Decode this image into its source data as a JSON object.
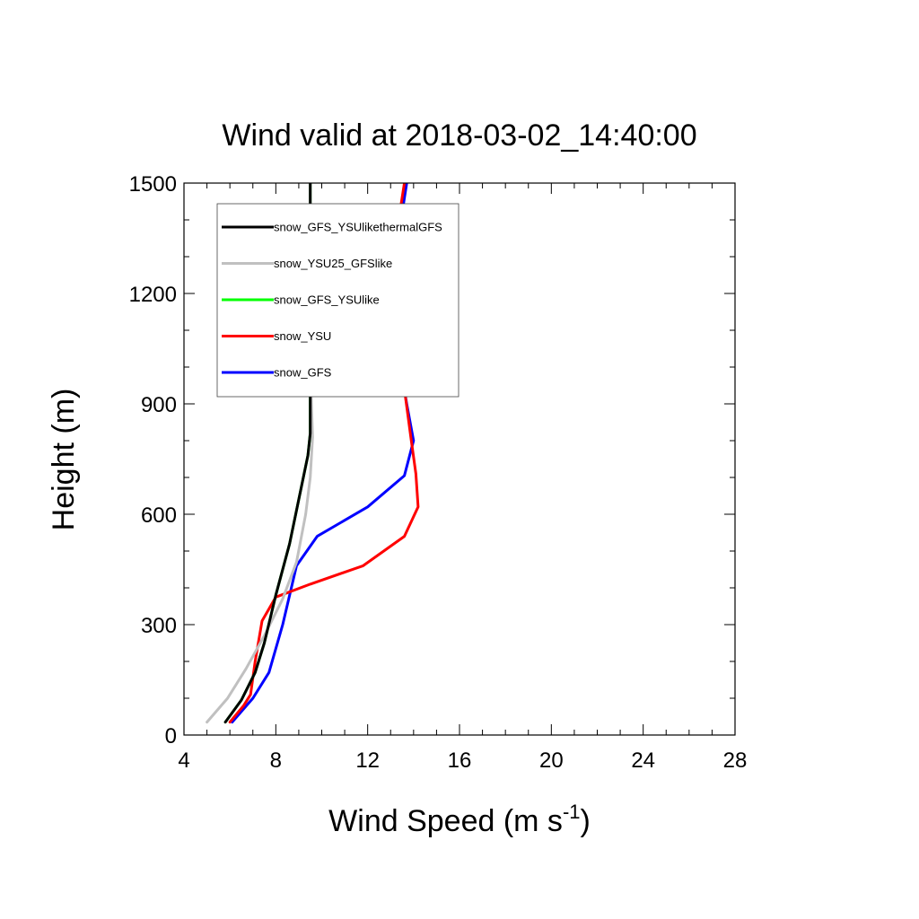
{
  "chart_data": {
    "type": "line",
    "title": "Wind valid at 2018-03-02_14:40:00",
    "xlabel_main": "Wind Speed (m s",
    "xlabel_sup": "-1",
    "xlabel_close": ")",
    "ylabel": "Height (m)",
    "xlim": [
      4,
      28
    ],
    "ylim": [
      0,
      1500
    ],
    "xticks": [
      4,
      8,
      12,
      16,
      20,
      24,
      28
    ],
    "yticks": [
      0,
      300,
      600,
      900,
      1200,
      1500
    ],
    "xtick_labels": [
      "4",
      "8",
      "12",
      "16",
      "20",
      "24",
      "28"
    ],
    "ytick_labels": [
      "0",
      "300",
      "600",
      "900",
      "1200",
      "1500"
    ],
    "x_minor_step": 1,
    "y_minor_step": 100,
    "grid": false,
    "legend_position": "top-left",
    "series": [
      {
        "name": "snow_GFS",
        "color": "#0000ff",
        "points": [
          [
            6.1,
            35
          ],
          [
            7.0,
            100
          ],
          [
            7.7,
            170
          ],
          [
            8.3,
            300
          ],
          [
            8.9,
            460
          ],
          [
            9.8,
            540
          ],
          [
            12.0,
            620
          ],
          [
            13.6,
            705
          ],
          [
            14.0,
            800
          ],
          [
            13.7,
            900
          ],
          [
            13.3,
            1050
          ],
          [
            13.1,
            1180
          ],
          [
            13.2,
            1300
          ],
          [
            13.7,
            1500
          ]
        ]
      },
      {
        "name": "snow_YSU",
        "color": "#ff0000",
        "points": [
          [
            6.0,
            35
          ],
          [
            6.6,
            80
          ],
          [
            6.9,
            110
          ],
          [
            7.1,
            200
          ],
          [
            7.4,
            310
          ],
          [
            8.0,
            375
          ],
          [
            9.5,
            410
          ],
          [
            11.8,
            460
          ],
          [
            13.6,
            540
          ],
          [
            14.2,
            620
          ],
          [
            14.1,
            710
          ],
          [
            13.9,
            800
          ],
          [
            13.6,
            940
          ],
          [
            13.3,
            1050
          ],
          [
            13.0,
            1170
          ],
          [
            13.1,
            1300
          ],
          [
            13.6,
            1500
          ]
        ]
      },
      {
        "name": "snow_GFS_YSUlike",
        "color": "#00ff00",
        "points": [
          [
            5.8,
            35
          ],
          [
            6.5,
            95
          ],
          [
            7.1,
            170
          ],
          [
            7.5,
            250
          ],
          [
            8.0,
            380
          ],
          [
            8.6,
            520
          ],
          [
            9.0,
            640
          ],
          [
            9.4,
            760
          ],
          [
            9.5,
            820
          ],
          [
            9.5,
            1000
          ],
          [
            9.5,
            1500
          ]
        ]
      },
      {
        "name": "snow_YSU25_GFSlike",
        "color": "#c0c0c0",
        "points": [
          [
            5.0,
            35
          ],
          [
            5.9,
            100
          ],
          [
            6.7,
            180
          ],
          [
            7.5,
            270
          ],
          [
            8.3,
            370
          ],
          [
            8.9,
            470
          ],
          [
            9.3,
            600
          ],
          [
            9.5,
            700
          ],
          [
            9.6,
            810
          ],
          [
            9.5,
            1000
          ],
          [
            9.5,
            1500
          ]
        ]
      },
      {
        "name": "snow_GFS_YSUlikethermalGFS",
        "color": "#000000",
        "points": [
          [
            5.8,
            35
          ],
          [
            6.5,
            95
          ],
          [
            7.1,
            170
          ],
          [
            7.5,
            250
          ],
          [
            8.0,
            380
          ],
          [
            8.6,
            520
          ],
          [
            9.0,
            640
          ],
          [
            9.4,
            760
          ],
          [
            9.5,
            820
          ],
          [
            9.5,
            1000
          ],
          [
            9.5,
            1500
          ]
        ]
      }
    ],
    "legend_order": [
      "snow_GFS_YSUlikethermalGFS",
      "snow_YSU25_GFSlike",
      "snow_GFS_YSUlike",
      "snow_YSU",
      "snow_GFS"
    ]
  }
}
